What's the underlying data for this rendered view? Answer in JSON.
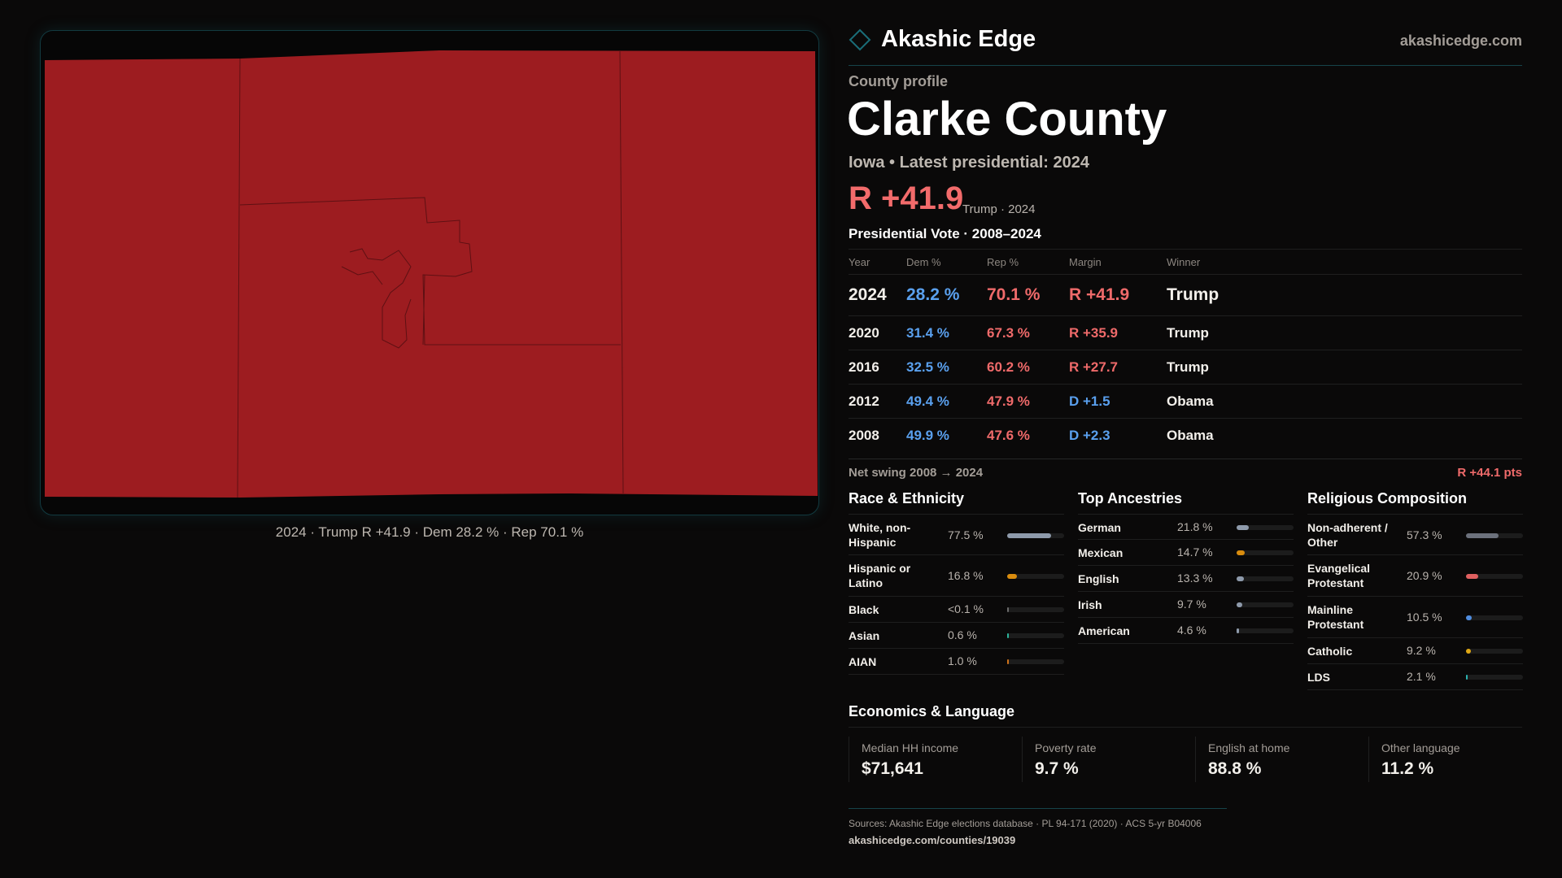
{
  "brand": {
    "name": "Akashic Edge",
    "site": "akashicedge.com",
    "icon": "diamond-icon",
    "accent": "#1a6d78"
  },
  "map": {
    "fill": "#9d1c20",
    "caption": "2024 · Trump R +41.9 · Dem 28.2 % · Rep 70.1 %"
  },
  "profile": {
    "kicker": "County profile",
    "title": "Clarke County",
    "subtitle": "Iowa • Latest presidential: 2024",
    "margin": "R +41.9",
    "margin_note": "Trump · 2024"
  },
  "votes": {
    "title": "Presidential Vote · 2008–2024",
    "headers": [
      "Year",
      "Dem %",
      "Rep %",
      "Margin",
      "Winner"
    ],
    "rows": [
      {
        "year": "2024",
        "dem": "28.2 %",
        "rep": "70.1 %",
        "margin": "R +41.9",
        "winner": "Trump",
        "party": "R"
      },
      {
        "year": "2020",
        "dem": "31.4 %",
        "rep": "67.3 %",
        "margin": "R +35.9",
        "winner": "Trump",
        "party": "R"
      },
      {
        "year": "2016",
        "dem": "32.5 %",
        "rep": "60.2 %",
        "margin": "R +27.7",
        "winner": "Trump",
        "party": "R"
      },
      {
        "year": "2012",
        "dem": "49.4 %",
        "rep": "47.9 %",
        "margin": "D +1.5",
        "winner": "Obama",
        "party": "D"
      },
      {
        "year": "2008",
        "dem": "49.9 %",
        "rep": "47.6 %",
        "margin": "D +2.3",
        "winner": "Obama",
        "party": "D"
      }
    ],
    "swing_label": "Net swing 2008 → 2024",
    "swing_value": "R +44.1 pts"
  },
  "race": {
    "title": "Race & Ethnicity",
    "items": [
      {
        "label": "White, non-Hispanic",
        "value": "77.5 %",
        "pct": 77.5,
        "color": "#8e9aab"
      },
      {
        "label": "Hispanic or Latino",
        "value": "16.8 %",
        "pct": 16.8,
        "color": "#d98c0e"
      },
      {
        "label": "Black",
        "value": "<0.1 %",
        "pct": 0.05,
        "color": "#6b6b6b"
      },
      {
        "label": "Asian",
        "value": "0.6 %",
        "pct": 0.6,
        "color": "#2bb39a"
      },
      {
        "label": "AIAN",
        "value": "1.0 %",
        "pct": 1.0,
        "color": "#d0721a"
      }
    ]
  },
  "ancestry": {
    "title": "Top Ancestries",
    "items": [
      {
        "label": "German",
        "value": "21.8 %",
        "pct": 21.8,
        "color": "#8e9aab"
      },
      {
        "label": "Mexican",
        "value": "14.7 %",
        "pct": 14.7,
        "color": "#d98c0e"
      },
      {
        "label": "English",
        "value": "13.3 %",
        "pct": 13.3,
        "color": "#8e9aab"
      },
      {
        "label": "Irish",
        "value": "9.7 %",
        "pct": 9.7,
        "color": "#8e9aab"
      },
      {
        "label": "American",
        "value": "4.6 %",
        "pct": 4.6,
        "color": "#8e9aab"
      }
    ]
  },
  "religion": {
    "title": "Religious Composition",
    "items": [
      {
        "label": "Non-adherent / Other",
        "value": "57.3 %",
        "pct": 57.3,
        "color": "#6c717c"
      },
      {
        "label": "Evangelical Protestant",
        "value": "20.9 %",
        "pct": 20.9,
        "color": "#e06060"
      },
      {
        "label": "Mainline Protestant",
        "value": "10.5 %",
        "pct": 10.5,
        "color": "#4f8de0"
      },
      {
        "label": "Catholic",
        "value": "9.2 %",
        "pct": 9.2,
        "color": "#e0a814"
      },
      {
        "label": "LDS",
        "value": "2.1 %",
        "pct": 2.1,
        "color": "#2bb3b0"
      }
    ]
  },
  "econ": {
    "title": "Economics & Language",
    "stats": [
      {
        "label": "Median HH income",
        "value": "$71,641"
      },
      {
        "label": "Poverty rate",
        "value": "9.7 %"
      },
      {
        "label": "English at home",
        "value": "88.8 %"
      },
      {
        "label": "Other language",
        "value": "11.2 %"
      }
    ]
  },
  "footer": {
    "sources": "Sources: Akashic Edge elections database · PL 94-171 (2020) · ACS 5-yr B04006",
    "url": "akashicedge.com/counties/19039"
  }
}
